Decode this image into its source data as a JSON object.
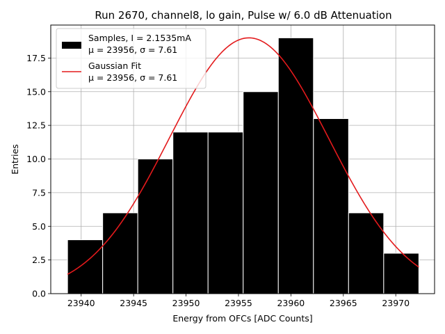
{
  "chart_data": {
    "type": "bar",
    "title": "Run 2670, channel8, lo gain, Pulse w/ 6.0 dB Attenuation",
    "xlabel": "Energy from OFCs [ADC Counts]",
    "ylabel": "Entries",
    "xlim": [
      23937.1,
      23973.7
    ],
    "ylim": [
      0,
      19.95
    ],
    "grid": true,
    "legend_position": "top-left",
    "x_ticks": [
      23940,
      23945,
      23950,
      23955,
      23960,
      23965,
      23970
    ],
    "x_tick_labels": [
      "23940",
      "23945",
      "23950",
      "23955",
      "23960",
      "23965",
      "23970"
    ],
    "y_ticks": [
      0,
      2.5,
      5,
      7.5,
      10,
      12.5,
      15,
      17.5
    ],
    "y_tick_labels": [
      "0.0",
      "2.5",
      "5.0",
      "7.5",
      "10.0",
      "12.5",
      "15.0",
      "17.5"
    ],
    "histogram": {
      "name": "Samples, I = 2.1535mA",
      "stats_label": "μ = 23956, σ = 7.61",
      "color": "#000000",
      "bin_edges": [
        23938.7,
        23942.05,
        23945.4,
        23948.75,
        23952.1,
        23955.45,
        23958.8,
        23962.15,
        23965.5,
        23968.85,
        23972.2
      ],
      "values": [
        4,
        6,
        10,
        12,
        12,
        15,
        19,
        13,
        6,
        3
      ]
    },
    "fit": {
      "name": "Gaussian Fit",
      "stats_label": "μ = 23956, σ = 7.61",
      "color": "#e31a1c",
      "mu": 23956,
      "sigma": 7.61,
      "amplitude": 19.0,
      "x_range": [
        23938.7,
        23972.2
      ]
    }
  }
}
